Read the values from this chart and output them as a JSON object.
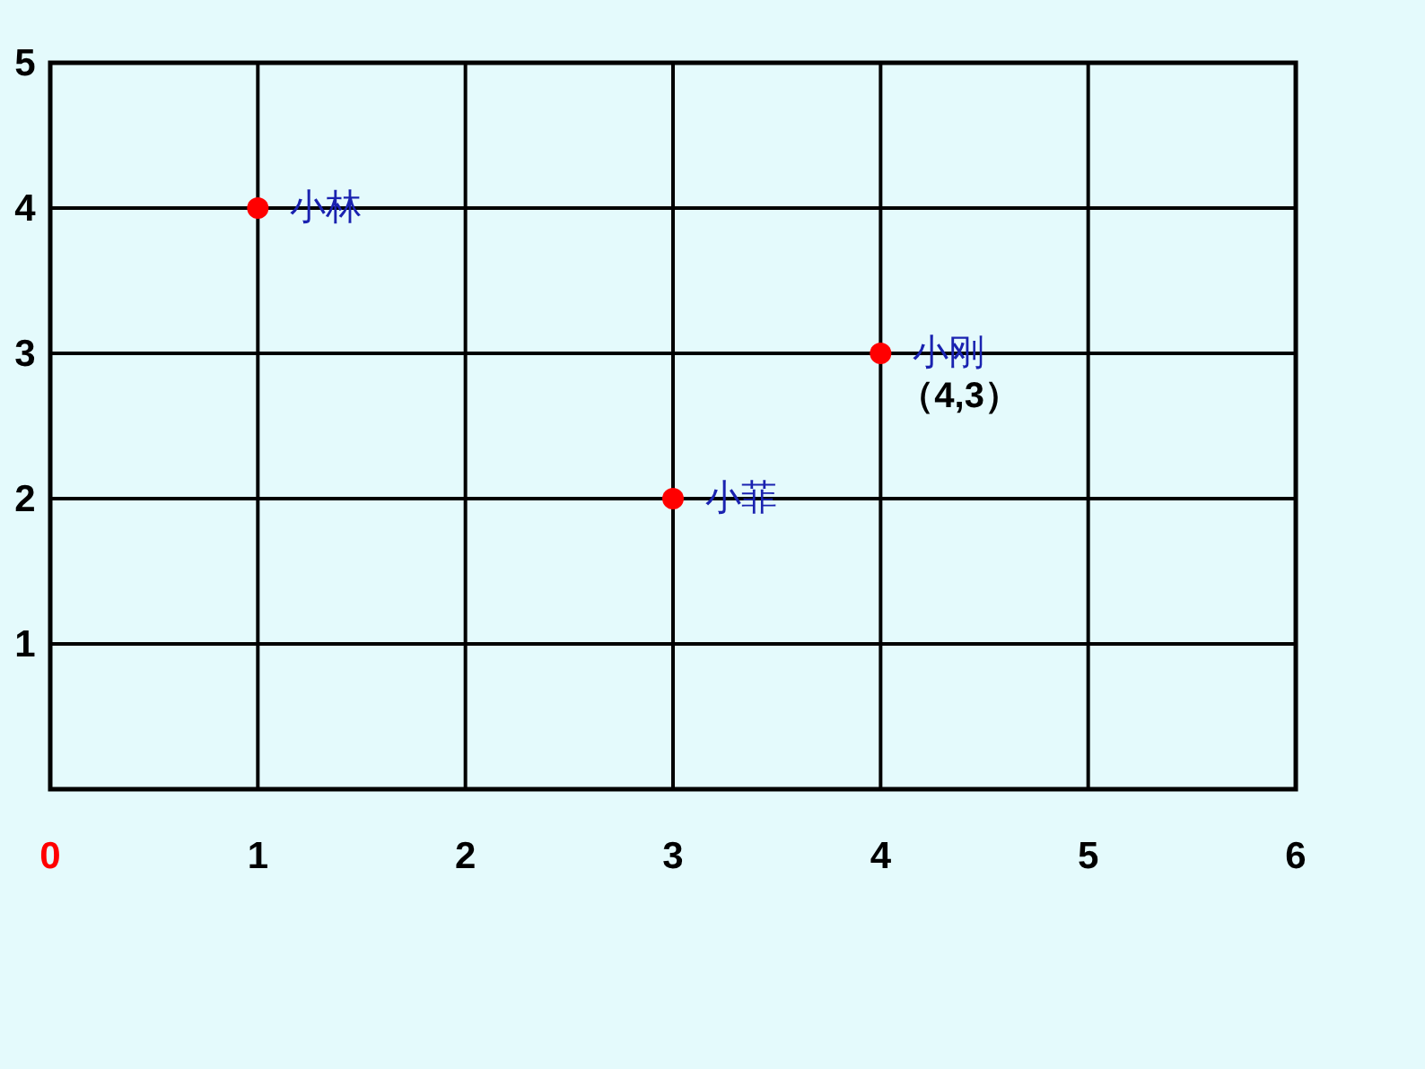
{
  "chart_data": {
    "type": "scatter",
    "x": [
      1,
      3,
      4
    ],
    "values": [
      4,
      2,
      3
    ],
    "color": "#ff0000",
    "marker": "circle",
    "grid": true,
    "xlim": [
      0,
      6
    ],
    "ylim": [
      0,
      5
    ],
    "xticks": [
      0,
      1,
      2,
      3,
      4,
      5,
      6
    ],
    "yticks": [
      1,
      2,
      3,
      4,
      5
    ],
    "annotations": [
      {
        "text": "小林",
        "x": 1,
        "y": 4
      },
      {
        "text": "小菲",
        "x": 3,
        "y": 2
      },
      {
        "text": "小刚",
        "x": 4,
        "y": 3
      },
      {
        "text": "（4,3）",
        "x": 4,
        "y": 3
      }
    ]
  }
}
